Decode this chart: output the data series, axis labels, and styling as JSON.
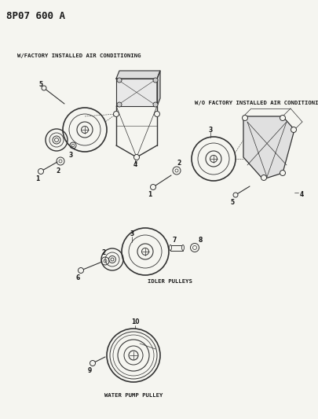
{
  "title": "8P07 600 A",
  "bg_color": "#f5f5f0",
  "text_color": "#1a1a1a",
  "line_color": "#333333",
  "label_w_factory": "W/FACTORY INSTALLED AIR CONDITIONING",
  "label_wo_factory": "W/O FACTORY INSTALLED AIR CONDITIONING",
  "label_idler": "IDLER PULLEYS",
  "label_water": "WATER PUMP PULLEY",
  "title_fontsize": 9,
  "label_fontsize": 5.2,
  "number_fontsize": 5.5,
  "figsize": [
    4.05,
    5.33
  ],
  "dpi": 100
}
